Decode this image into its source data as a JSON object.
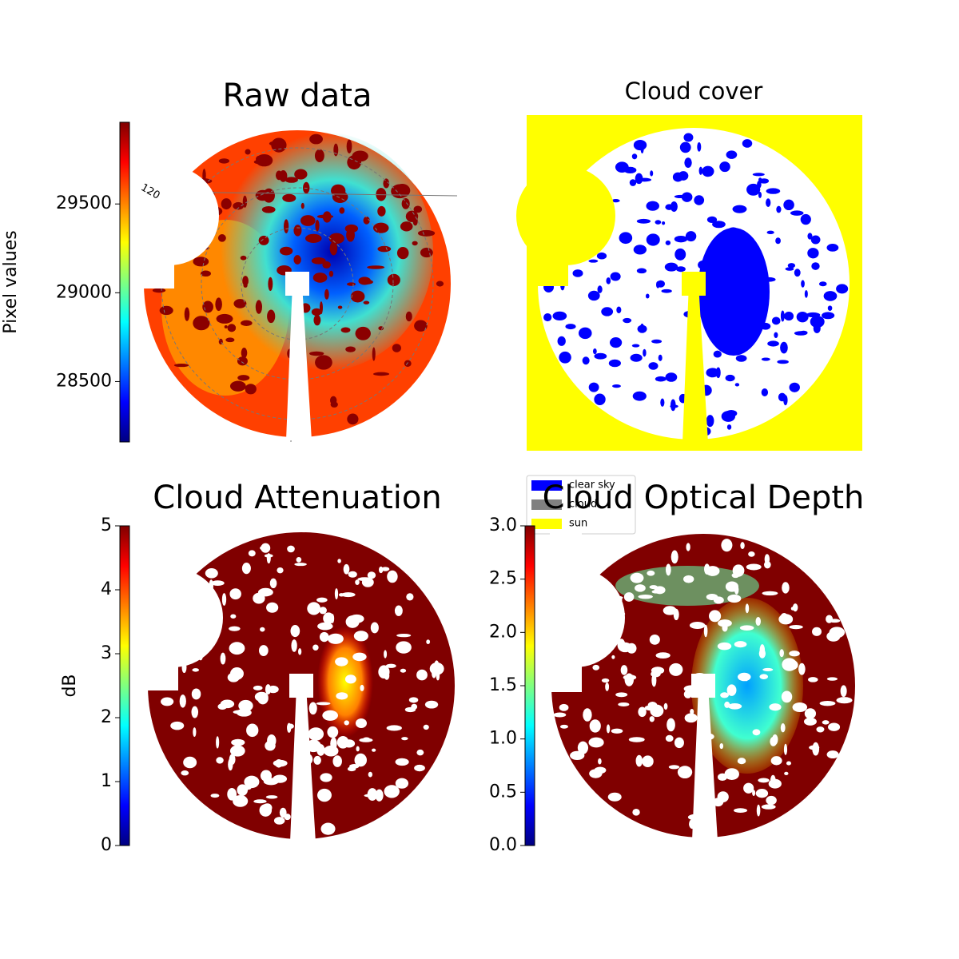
{
  "chart_data": [
    {
      "type": "colorbar-image",
      "title": "Raw data",
      "colorbar_label": "Pixel values",
      "ylim": [
        28160,
        29960
      ],
      "yticks": [
        28500,
        29000,
        29500
      ],
      "annotations": [
        "120"
      ]
    },
    {
      "type": "category-image",
      "title": "Cloud cover",
      "legend": [
        {
          "name": "clear sky",
          "color": "#0000ff"
        },
        {
          "name": "cloud",
          "color": "#808080"
        },
        {
          "name": "sun",
          "color": "#ffff00"
        }
      ]
    },
    {
      "type": "colorbar-image",
      "title": "Cloud Attenuation",
      "colorbar_label": "dB",
      "ylim": [
        0,
        5
      ],
      "yticks": [
        0,
        1,
        2,
        3,
        4,
        5
      ]
    },
    {
      "type": "colorbar-image",
      "title": "Cloud Optical Depth",
      "ylim": [
        0,
        3
      ],
      "yticks": [
        {
          "value": 0,
          "label": "0.0"
        },
        0.5,
        {
          "value": 1,
          "label": "1.0"
        },
        1.5,
        {
          "value": 2,
          "label": "2.0"
        },
        2.5,
        {
          "value": 3,
          "label": "3.0"
        }
      ]
    }
  ]
}
